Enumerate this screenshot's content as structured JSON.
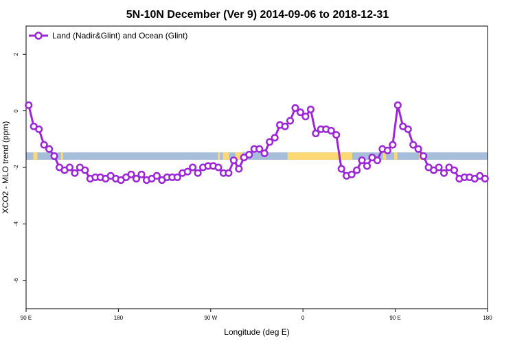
{
  "chart_data": {
    "type": "line",
    "title": "5N-10N December (Ver 9)   2014-09-06 to 2018-12-31",
    "xlabel": "Longitude (deg E)",
    "ylabel": "XCO2 - MLO trend (ppm)",
    "x_ticks": [
      {
        "value": 90,
        "label": "90 E"
      },
      {
        "value": 180,
        "label": "180"
      },
      {
        "value": 270,
        "label": "90 W"
      },
      {
        "value": 360,
        "label": "0"
      },
      {
        "value": 450,
        "label": "90 E"
      },
      {
        "value": 540,
        "label": "180"
      }
    ],
    "y_ticks": [
      {
        "value": 2,
        "label": "2"
      },
      {
        "value": 0,
        "label": "0"
      },
      {
        "value": -2,
        "label": "-2"
      },
      {
        "value": -4,
        "label": "-4"
      },
      {
        "value": -6,
        "label": "-6"
      }
    ],
    "xlim": [
      90,
      540
    ],
    "ylim": [
      -7,
      3
    ],
    "legend_position": "top-left",
    "colors": {
      "series": "#9b27d6",
      "ocean_band": "#a7bedb",
      "land_band": "#fcd975"
    },
    "band": {
      "y_center": -1.6,
      "y_half_height": 0.13
    },
    "land_ranges": [
      [
        97,
        101
      ],
      [
        124,
        126
      ],
      [
        277,
        279
      ],
      [
        282,
        288
      ],
      [
        294,
        301
      ],
      [
        345,
        408
      ],
      [
        438,
        441
      ],
      [
        449,
        452
      ],
      [
        473,
        477
      ]
    ],
    "series": [
      {
        "name": "Land (Nadir&Glint) and Ocean (Glint)",
        "x": [
          92.5,
          97.5,
          102.5,
          107.5,
          112.5,
          117.5,
          122.5,
          127.5,
          132.5,
          137.5,
          142.5,
          147.5,
          152.5,
          157.5,
          162.5,
          167.5,
          172.5,
          177.5,
          182.5,
          187.5,
          192.5,
          197.5,
          202.5,
          207.5,
          212.5,
          217.5,
          222.5,
          227.5,
          232.5,
          237.5,
          242.5,
          247.5,
          252.5,
          257.5,
          262.5,
          267.5,
          272.5,
          277.5,
          282.5,
          287.5,
          292.5,
          297.5,
          302.5,
          307.5,
          312.5,
          317.5,
          322.5,
          327.5,
          332.5,
          337.5,
          342.5,
          347.5,
          352.5,
          357.5,
          362.5,
          367.5,
          372.5,
          377.5,
          382.5,
          387.5,
          392.5,
          397.5,
          402.5,
          407.5,
          412.5,
          417.5,
          422.5,
          427.5,
          432.5,
          437.5,
          442.5,
          447.5,
          452.5,
          457.5,
          462.5,
          467.5,
          472.5,
          477.5,
          482.5,
          487.5,
          492.5,
          497.5,
          502.5,
          507.5,
          512.5,
          517.5,
          522.5,
          527.5,
          532.5,
          537.5
        ],
        "values": [
          0.2,
          -0.55,
          -0.65,
          -1.2,
          -1.35,
          -1.6,
          -2.0,
          -2.1,
          -2.0,
          -2.2,
          -2.0,
          -2.1,
          -2.4,
          -2.35,
          -2.35,
          -2.4,
          -2.3,
          -2.4,
          -2.45,
          -2.35,
          -2.25,
          -2.4,
          -2.25,
          -2.45,
          -2.4,
          -2.3,
          -2.45,
          -2.35,
          -2.35,
          -2.35,
          -2.2,
          -2.15,
          -2.0,
          -2.2,
          -2.0,
          -1.95,
          -1.95,
          -2.0,
          -2.2,
          -2.2,
          -1.75,
          -2.05,
          -1.65,
          -1.55,
          -1.35,
          -1.35,
          -1.5,
          -1.1,
          -0.95,
          -0.5,
          -0.55,
          -0.35,
          0.1,
          -0.05,
          -0.2,
          0.05,
          -0.8,
          -0.65,
          -0.65,
          -0.7,
          -0.85,
          -2.05,
          -2.3,
          -2.25,
          -2.1,
          -1.75,
          -1.95,
          -1.65,
          -1.75,
          -1.35,
          -1.4,
          -1.2,
          0.2,
          -0.55,
          -0.65,
          -1.2,
          -1.35,
          -1.6,
          -2.0,
          -2.1,
          -2.0,
          -2.2,
          -2.0,
          -2.1,
          -2.4,
          -2.35,
          -2.35,
          -2.4,
          -2.3,
          -2.4
        ]
      }
    ]
  }
}
